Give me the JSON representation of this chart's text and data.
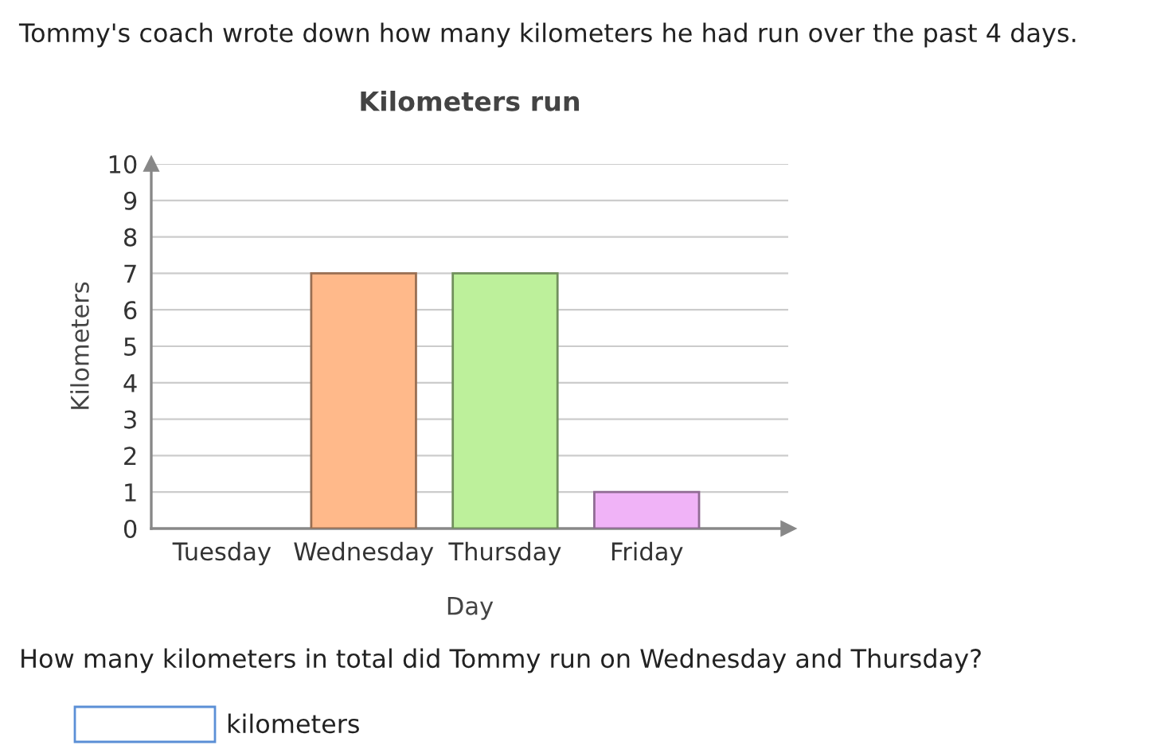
{
  "chart_data": {
    "type": "bar",
    "title": "Kilometers run",
    "categories": [
      "Tuesday",
      "Wednesday",
      "Thursday",
      "Friday"
    ],
    "values": [
      0,
      7,
      7,
      1
    ],
    "colors": [
      "#ffb98a",
      "#ffb98a",
      "#bdf09b",
      "#f0b3f7"
    ],
    "xlabel": "Day",
    "ylabel": "Kilometers",
    "ylim": [
      0,
      10
    ],
    "yticks": [
      0,
      1,
      2,
      3,
      4,
      5,
      6,
      7,
      8,
      9,
      10
    ],
    "grid": "y",
    "annotations": [
      "Tommy's coach wrote down how many kilometers he had run over the past 4 days.",
      "How many kilometers in total did Tommy run on Wednesday and Thursday?",
      "kilometers"
    ]
  }
}
